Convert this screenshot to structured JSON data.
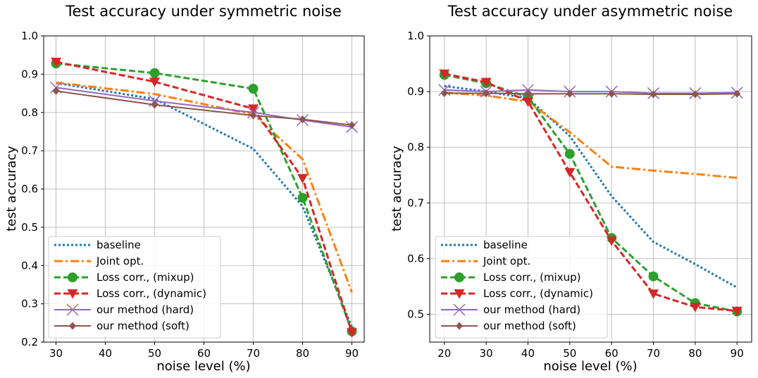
{
  "chart_data": [
    {
      "type": "line",
      "title": "Test accuracy under symmetric noise",
      "xlabel": "noise level (%)",
      "ylabel": "test accuracy",
      "x": [
        30,
        50,
        70,
        80,
        90
      ],
      "xlim": [
        27.5,
        92.5
      ],
      "ylim": [
        0.2,
        1.0
      ],
      "xticks": [
        "30",
        "40",
        "50",
        "60",
        "70",
        "80",
        "90"
      ],
      "yticks": [
        "0.2",
        "0.3",
        "0.4",
        "0.5",
        "0.6",
        "0.7",
        "0.8",
        "0.9",
        "1.0"
      ],
      "grid": true,
      "legend_position": "lower-left",
      "series": [
        {
          "name": "baseline",
          "values": [
            0.877,
            0.835,
            0.705,
            0.555,
            0.24
          ],
          "color": "#1f77b4",
          "dash": "dotted",
          "marker": "none"
        },
        {
          "name": "Joint opt.",
          "values": [
            0.878,
            0.848,
            0.795,
            0.678,
            0.33
          ],
          "color": "#ff7f0e",
          "dash": "dashdot",
          "marker": "none"
        },
        {
          "name": "Loss corr., (mixup)",
          "values": [
            0.928,
            0.903,
            0.862,
            0.577,
            0.228
          ],
          "color": "#2ca02c",
          "dash": "dashed",
          "marker": "circle"
        },
        {
          "name": "Loss corr., (dynamic)",
          "values": [
            0.932,
            0.88,
            0.81,
            0.628,
            0.225
          ],
          "color": "#d62728",
          "dash": "dashed",
          "marker": "triangle-down"
        },
        {
          "name": "our method (hard)",
          "values": [
            0.865,
            0.83,
            0.8,
            0.78,
            0.762
          ],
          "color": "#9467bd",
          "dash": "solid",
          "marker": "x"
        },
        {
          "name": "our method (soft)",
          "values": [
            0.856,
            0.82,
            0.792,
            0.782,
            0.767
          ],
          "color": "#8c564b",
          "dash": "solid",
          "marker": "diamond"
        }
      ]
    },
    {
      "type": "line",
      "title": "Test accuracy under asymmetric noise",
      "xlabel": "noise level (%)",
      "ylabel": "test accuracy",
      "x": [
        20,
        30,
        40,
        50,
        60,
        70,
        80,
        90
      ],
      "xlim": [
        16.5,
        93.5
      ],
      "ylim": [
        0.45,
        1.0
      ],
      "xticks": [
        "20",
        "30",
        "40",
        "50",
        "60",
        "70",
        "80",
        "90"
      ],
      "yticks": [
        "0.5",
        "0.6",
        "0.7",
        "0.8",
        "0.9",
        "1.0"
      ],
      "grid": true,
      "legend_position": "lower-left",
      "series": [
        {
          "name": "baseline",
          "values": [
            0.91,
            0.9,
            0.888,
            0.82,
            0.712,
            0.63,
            0.59,
            0.548
          ],
          "color": "#1f77b4",
          "dash": "dotted",
          "marker": "none"
        },
        {
          "name": "Joint opt.",
          "values": [
            0.898,
            0.893,
            0.882,
            0.827,
            0.765,
            0.758,
            0.752,
            0.745
          ],
          "color": "#ff7f0e",
          "dash": "dashdot",
          "marker": "none"
        },
        {
          "name": "Loss corr., (mixup)",
          "values": [
            0.93,
            0.915,
            0.89,
            0.788,
            0.637,
            0.568,
            0.52,
            0.505
          ],
          "color": "#2ca02c",
          "dash": "dashed",
          "marker": "circle"
        },
        {
          "name": "Loss corr., (dynamic)",
          "values": [
            0.932,
            0.917,
            0.882,
            0.755,
            0.632,
            0.537,
            0.513,
            0.506
          ],
          "color": "#d62728",
          "dash": "dashed",
          "marker": "triangle-down"
        },
        {
          "name": "our method (hard)",
          "values": [
            0.903,
            0.9,
            0.903,
            0.9,
            0.9,
            0.897,
            0.897,
            0.898
          ],
          "color": "#9467bd",
          "dash": "solid",
          "marker": "x"
        },
        {
          "name": "our method (soft)",
          "values": [
            0.897,
            0.897,
            0.896,
            0.896,
            0.896,
            0.895,
            0.895,
            0.896
          ],
          "color": "#8c564b",
          "dash": "solid",
          "marker": "diamond"
        }
      ]
    }
  ]
}
